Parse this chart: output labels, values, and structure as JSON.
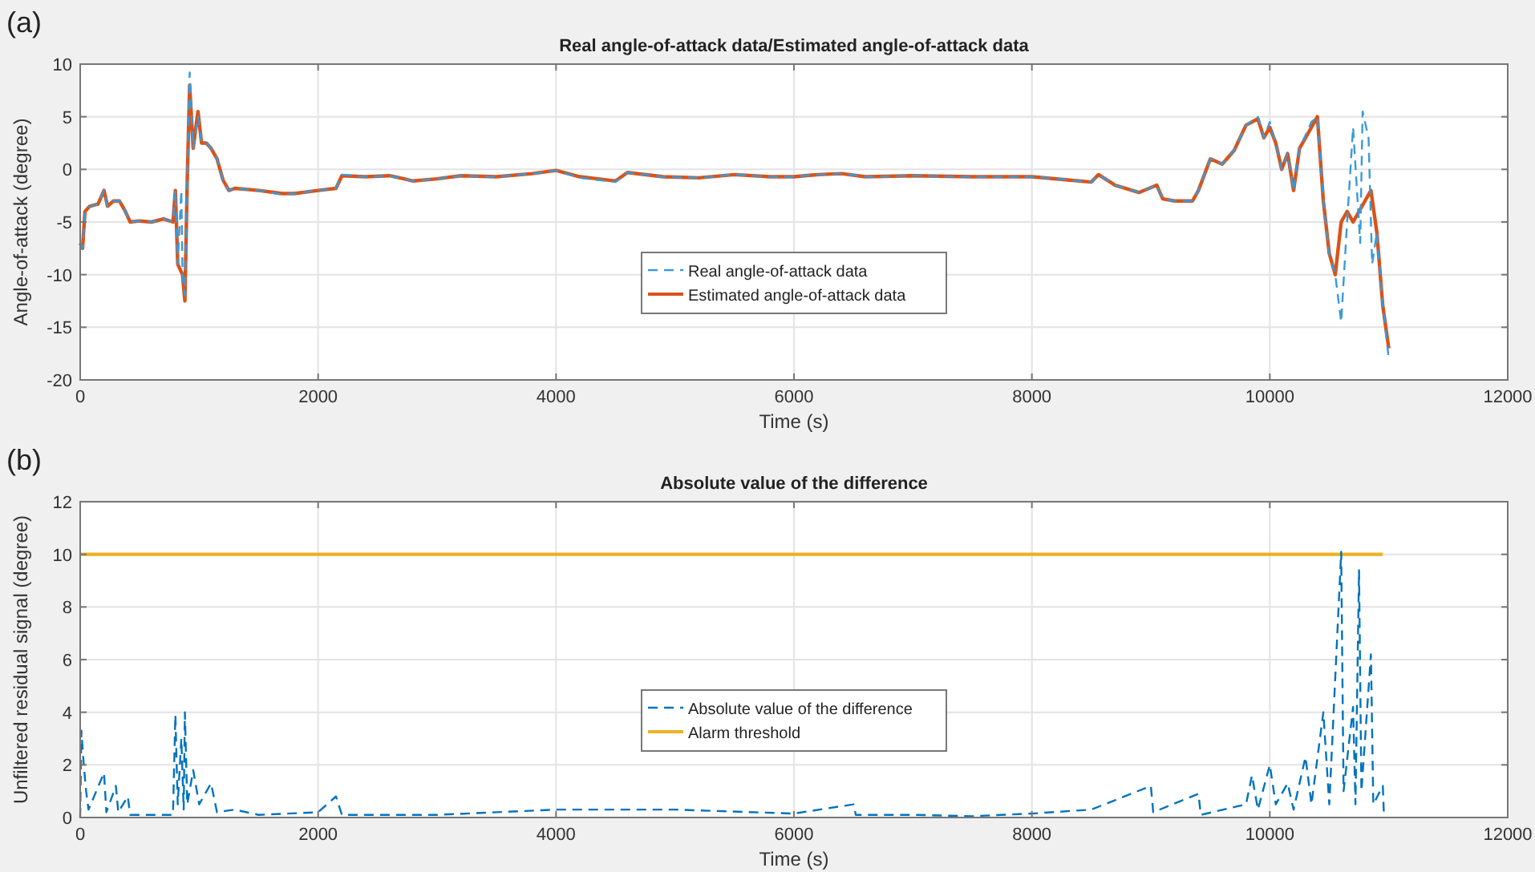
{
  "chart_data": [
    {
      "type": "line",
      "title": "Real angle-of-attack data/Estimated angle-of-attack data",
      "xlabel": "Time (s)",
      "ylabel": "Angle-of-attack (degree)",
      "annotations": [
        "(a)"
      ],
      "xlim": [
        0,
        12000
      ],
      "xticks": [
        0,
        2000,
        4000,
        6000,
        8000,
        10000,
        12000
      ],
      "ylim": [
        -20,
        10
      ],
      "yticks": [
        -20,
        -15,
        -10,
        -5,
        0,
        5,
        10
      ],
      "grid": true,
      "legend": "center",
      "series": [
        {
          "name": "Real angle-of-attack data",
          "color": "#3a9ad9",
          "line_style": "dashed",
          "x": [
            0,
            20,
            40,
            80,
            150,
            200,
            230,
            280,
            330,
            380,
            420,
            500,
            600,
            700,
            780,
            800,
            820,
            850,
            860,
            880,
            900,
            920,
            950,
            990,
            1020,
            1060,
            1100,
            1150,
            1200,
            1250,
            1300,
            1500,
            1700,
            1800,
            2000,
            2150,
            2200,
            2400,
            2600,
            2800,
            3000,
            3200,
            3500,
            3800,
            4000,
            4200,
            4500,
            4600,
            4900,
            5200,
            5500,
            5800,
            6000,
            6200,
            6400,
            6600,
            7000,
            7500,
            8000,
            8300,
            8500,
            8560,
            8700,
            8900,
            9050,
            9100,
            9200,
            9350,
            9400,
            9500,
            9600,
            9700,
            9800,
            9900,
            9950,
            10000,
            10050,
            10100,
            10150,
            10200,
            10250,
            10350,
            10400,
            10450,
            10500,
            10550,
            10600,
            10650,
            10700,
            10760,
            10780,
            10830,
            10860,
            10900,
            10950,
            11000
          ],
          "values": [
            -7,
            -7.5,
            -4,
            -3.5,
            -3.3,
            -2,
            -3.5,
            -3,
            -3,
            -4,
            -5,
            -4.9,
            -5,
            -4.7,
            -5,
            -2,
            -9,
            -2,
            -10,
            -12,
            -1,
            9.2,
            2,
            5,
            2.5,
            2.5,
            2,
            1,
            -1,
            -2,
            -1.8,
            -2,
            -2.4,
            -2.3,
            -2,
            -1.8,
            -0.5,
            -0.7,
            -0.6,
            -1.1,
            -0.9,
            -0.6,
            -0.7,
            -0.4,
            -0.1,
            -0.8,
            -1.2,
            -0.3,
            -0.7,
            -0.8,
            -0.5,
            -0.7,
            -0.7,
            -0.5,
            -0.4,
            -0.7,
            -0.6,
            -0.7,
            -0.7,
            -1,
            -1.2,
            -0.5,
            -1.5,
            -2.2,
            -1.5,
            -2.8,
            -3,
            -3,
            -2,
            1,
            0.5,
            1.8,
            4.2,
            5,
            3,
            4.5,
            2.5,
            0,
            1.5,
            -2,
            2,
            4.5,
            5,
            -3,
            -8,
            -10,
            -14.5,
            -5,
            4,
            -7,
            5.5,
            3,
            -9,
            -6,
            -13,
            -18
          ]
        },
        {
          "name": "Estimated angle-of-attack data",
          "color": "#d95319",
          "line_style": "solid",
          "x": [
            0,
            20,
            40,
            80,
            150,
            200,
            230,
            280,
            330,
            380,
            420,
            500,
            600,
            700,
            780,
            800,
            820,
            860,
            880,
            900,
            920,
            950,
            990,
            1020,
            1060,
            1100,
            1150,
            1200,
            1250,
            1300,
            1500,
            1700,
            1800,
            2000,
            2150,
            2200,
            2400,
            2600,
            2800,
            3000,
            3200,
            3500,
            3800,
            4000,
            4200,
            4500,
            4600,
            4900,
            5200,
            5500,
            5800,
            6000,
            6200,
            6400,
            6600,
            7000,
            7500,
            8000,
            8300,
            8500,
            8560,
            8700,
            8900,
            9050,
            9100,
            9200,
            9350,
            9400,
            9500,
            9600,
            9700,
            9800,
            9900,
            9950,
            10000,
            10050,
            10100,
            10150,
            10200,
            10250,
            10350,
            10400,
            10450,
            10500,
            10550,
            10600,
            10650,
            10700,
            10800,
            10850,
            10900,
            10950,
            11000
          ],
          "values": [
            -7,
            -7.5,
            -4,
            -3.5,
            -3.3,
            -2,
            -3.5,
            -3,
            -3,
            -4,
            -5,
            -4.9,
            -5,
            -4.7,
            -5,
            -2,
            -9,
            -10,
            -12.5,
            -1,
            8,
            2,
            5.5,
            2.5,
            2.5,
            2,
            1,
            -1,
            -2,
            -1.8,
            -2,
            -2.3,
            -2.3,
            -2,
            -1.8,
            -0.6,
            -0.7,
            -0.6,
            -1.1,
            -0.9,
            -0.6,
            -0.7,
            -0.4,
            -0.1,
            -0.7,
            -1.1,
            -0.3,
            -0.7,
            -0.8,
            -0.5,
            -0.7,
            -0.7,
            -0.5,
            -0.4,
            -0.7,
            -0.6,
            -0.7,
            -0.7,
            -1,
            -1.2,
            -0.5,
            -1.5,
            -2.2,
            -1.5,
            -2.8,
            -3,
            -3,
            -2,
            1,
            0.5,
            1.8,
            4.2,
            4.8,
            3,
            4,
            2.5,
            0,
            1.5,
            -2,
            2,
            4,
            5,
            -3,
            -8,
            -10,
            -5,
            -4,
            -5,
            -3,
            -2,
            -6,
            -13,
            -17
          ]
        }
      ]
    },
    {
      "type": "line",
      "title": "Absolute value of the difference",
      "xlabel": "Time (s)",
      "ylabel": "Unfiltered residual signal (degree)",
      "annotations": [
        "(b)"
      ],
      "xlim": [
        0,
        12000
      ],
      "xticks": [
        0,
        2000,
        4000,
        6000,
        8000,
        10000,
        12000
      ],
      "ylim": [
        0,
        12
      ],
      "yticks": [
        0,
        2,
        4,
        6,
        8,
        10,
        12
      ],
      "grid": true,
      "legend": "center",
      "series": [
        {
          "name": "Absolute value of the difference",
          "color": "#0072bd",
          "line_style": "dashed",
          "x": [
            0,
            10,
            30,
            50,
            70,
            200,
            220,
            300,
            320,
            400,
            420,
            780,
            800,
            820,
            850,
            870,
            880,
            900,
            950,
            1000,
            1100,
            1150,
            1300,
            1500,
            2000,
            2150,
            2200,
            3000,
            4000,
            5000,
            6000,
            6500,
            6520,
            7000,
            7500,
            8000,
            8500,
            9000,
            9020,
            9400,
            9420,
            9800,
            9850,
            9900,
            10000,
            10050,
            10150,
            10200,
            10300,
            10350,
            10450,
            10500,
            10600,
            10620,
            10700,
            10720,
            10750,
            10770,
            10850,
            10870,
            10950,
            10960
          ],
          "values": [
            0,
            3.3,
            2,
            1,
            0.3,
            1.7,
            0.2,
            1.2,
            0.2,
            0.8,
            0.1,
            0.1,
            3.9,
            0.5,
            3,
            0.3,
            4,
            0.5,
            1.8,
            0.5,
            1.3,
            0.2,
            0.3,
            0.1,
            0.2,
            0.8,
            0.1,
            0.1,
            0.3,
            0.3,
            0.15,
            0.5,
            0.1,
            0.1,
            0.05,
            0.15,
            0.3,
            1.2,
            0.2,
            0.9,
            0.1,
            0.5,
            1.6,
            0.3,
            2,
            0.5,
            1.3,
            0.3,
            2.3,
            0.5,
            4,
            0.5,
            10.1,
            1,
            4.2,
            0.5,
            9.4,
            1,
            6.2,
            0.5,
            1.2,
            0
          ]
        },
        {
          "name": "Alarm threshold",
          "color": "#edb120",
          "line_style": "solid",
          "x": [
            0,
            10950
          ],
          "values": [
            10,
            10
          ]
        }
      ]
    }
  ]
}
